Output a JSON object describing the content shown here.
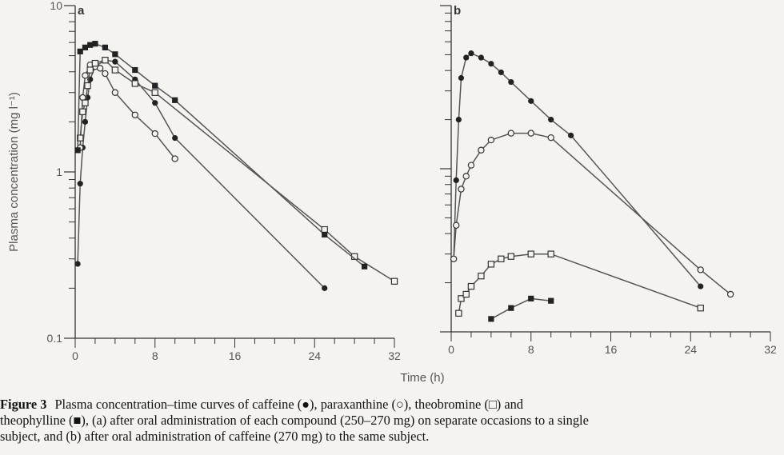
{
  "caption": {
    "label": "Figure 3",
    "line1": "Plasma concentration–time curves of caffeine (●), paraxanthine (○), theobromine (□) and",
    "line2": "theophylline (■), (a) after oral administration of each compound (250–270 mg) on separate occasions to a single",
    "line3": "subject, and (b) after oral administration of caffeine (270 mg) to the same subject."
  },
  "chart_data": {
    "type": "scatter",
    "xlabel": "Time (h)",
    "ylabel": "Plasma concentration (mg l⁻¹)",
    "yscale": "log",
    "ylim": [
      0.1,
      10
    ],
    "xlim": [
      0,
      32
    ],
    "y_ticks": [
      "10",
      "1",
      "0.1"
    ],
    "x_ticks": [
      "0",
      "8",
      "16",
      "24",
      "32"
    ],
    "panels": [
      {
        "label": "a",
        "series": [
          {
            "name": "caffeine",
            "marker": "filled-circle",
            "x": [
              0.25,
              0.5,
              0.75,
              1,
              1.25,
              1.5,
              2,
              3,
              4,
              6,
              8,
              10,
              25
            ],
            "y": [
              0.28,
              0.85,
              1.4,
              2.0,
              2.8,
              3.6,
              4.3,
              4.7,
              4.6,
              3.6,
              2.6,
              1.6,
              0.2
            ]
          },
          {
            "name": "paraxanthine",
            "marker": "open-circle",
            "x": [
              0.5,
              0.75,
              1,
              1.5,
              2,
              2.5,
              3,
              4,
              6,
              8,
              10
            ],
            "y": [
              1.4,
              2.8,
              3.8,
              4.4,
              4.3,
              4.2,
              3.9,
              3.0,
              2.2,
              1.7,
              1.2
            ]
          },
          {
            "name": "theobromine",
            "marker": "open-square",
            "x": [
              0.5,
              0.75,
              1,
              1.25,
              1.5,
              2,
              3,
              4,
              6,
              8,
              25,
              28,
              32
            ],
            "y": [
              1.6,
              2.3,
              2.6,
              3.3,
              4.1,
              4.5,
              4.7,
              4.1,
              3.4,
              3.0,
              0.45,
              0.31,
              0.22
            ]
          },
          {
            "name": "theophylline",
            "marker": "filled-square",
            "x": [
              0.25,
              0.5,
              1,
              1.5,
              2,
              3,
              4,
              6,
              8,
              10,
              25,
              29
            ],
            "y": [
              1.35,
              5.3,
              5.6,
              5.8,
              5.9,
              5.6,
              5.1,
              4.1,
              3.3,
              2.7,
              0.42,
              0.27
            ]
          }
        ]
      },
      {
        "label": "b",
        "series": [
          {
            "name": "caffeine",
            "marker": "filled-circle",
            "x": [
              0.25,
              0.5,
              0.75,
              1,
              1.5,
              2,
              3,
              4,
              5,
              6,
              8,
              10,
              12,
              25
            ],
            "y": [
              0.28,
              0.85,
              2.0,
              3.6,
              4.8,
              5.1,
              4.8,
              4.4,
              3.9,
              3.4,
              2.6,
              2.0,
              1.6,
              0.19
            ]
          },
          {
            "name": "paraxanthine",
            "marker": "open-circle",
            "x": [
              0.25,
              0.5,
              1,
              1.5,
              2,
              3,
              4,
              6,
              8,
              10,
              25,
              28
            ],
            "y": [
              0.28,
              0.45,
              0.75,
              0.9,
              1.05,
              1.3,
              1.5,
              1.65,
              1.65,
              1.55,
              0.24,
              0.17
            ]
          },
          {
            "name": "theobromine",
            "marker": "open-square",
            "x": [
              0.75,
              1,
              1.5,
              2,
              3,
              4,
              5,
              6,
              8,
              10,
              25
            ],
            "y": [
              0.13,
              0.16,
              0.17,
              0.19,
              0.22,
              0.26,
              0.28,
              0.29,
              0.3,
              0.3,
              0.14
            ]
          },
          {
            "name": "theophylline",
            "marker": "filled-square",
            "x": [
              4,
              6,
              8,
              10
            ],
            "y": [
              0.12,
              0.14,
              0.16,
              0.155
            ]
          }
        ]
      }
    ]
  }
}
